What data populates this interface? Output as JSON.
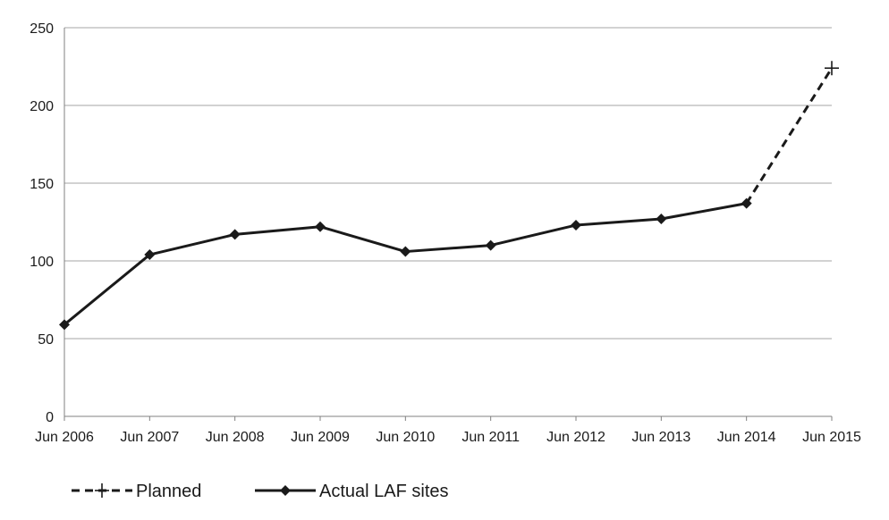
{
  "chart_data": {
    "type": "line",
    "categories": [
      "Jun 2006",
      "Jun 2007",
      "Jun 2008",
      "Jun 2009",
      "Jun 2010",
      "Jun 2011",
      "Jun 2012",
      "Jun 2013",
      "Jun 2014",
      "Jun 2015"
    ],
    "series": [
      {
        "name": "Planned",
        "style": "dashed",
        "marker": "plus",
        "color": "#1a1a1a",
        "points": [
          {
            "category": "Jun 2014",
            "value": 137
          },
          {
            "category": "Jun 2015",
            "value": 224
          }
        ]
      },
      {
        "name": "Actual LAF sites",
        "style": "solid",
        "marker": "diamond",
        "color": "#1a1a1a",
        "points": [
          {
            "category": "Jun 2006",
            "value": 59
          },
          {
            "category": "Jun 2007",
            "value": 104
          },
          {
            "category": "Jun 2008",
            "value": 117
          },
          {
            "category": "Jun 2009",
            "value": 122
          },
          {
            "category": "Jun 2010",
            "value": 106
          },
          {
            "category": "Jun 2011",
            "value": 110
          },
          {
            "category": "Jun 2012",
            "value": 123
          },
          {
            "category": "Jun 2013",
            "value": 127
          },
          {
            "category": "Jun 2014",
            "value": 137
          }
        ]
      }
    ],
    "ylim": [
      0,
      250
    ],
    "yticks": [
      "0",
      "50",
      "100",
      "150",
      "200",
      "250"
    ],
    "grid": "horizontal",
    "legend_position": "bottom-left",
    "title": "",
    "xlabel": "",
    "ylabel": ""
  }
}
